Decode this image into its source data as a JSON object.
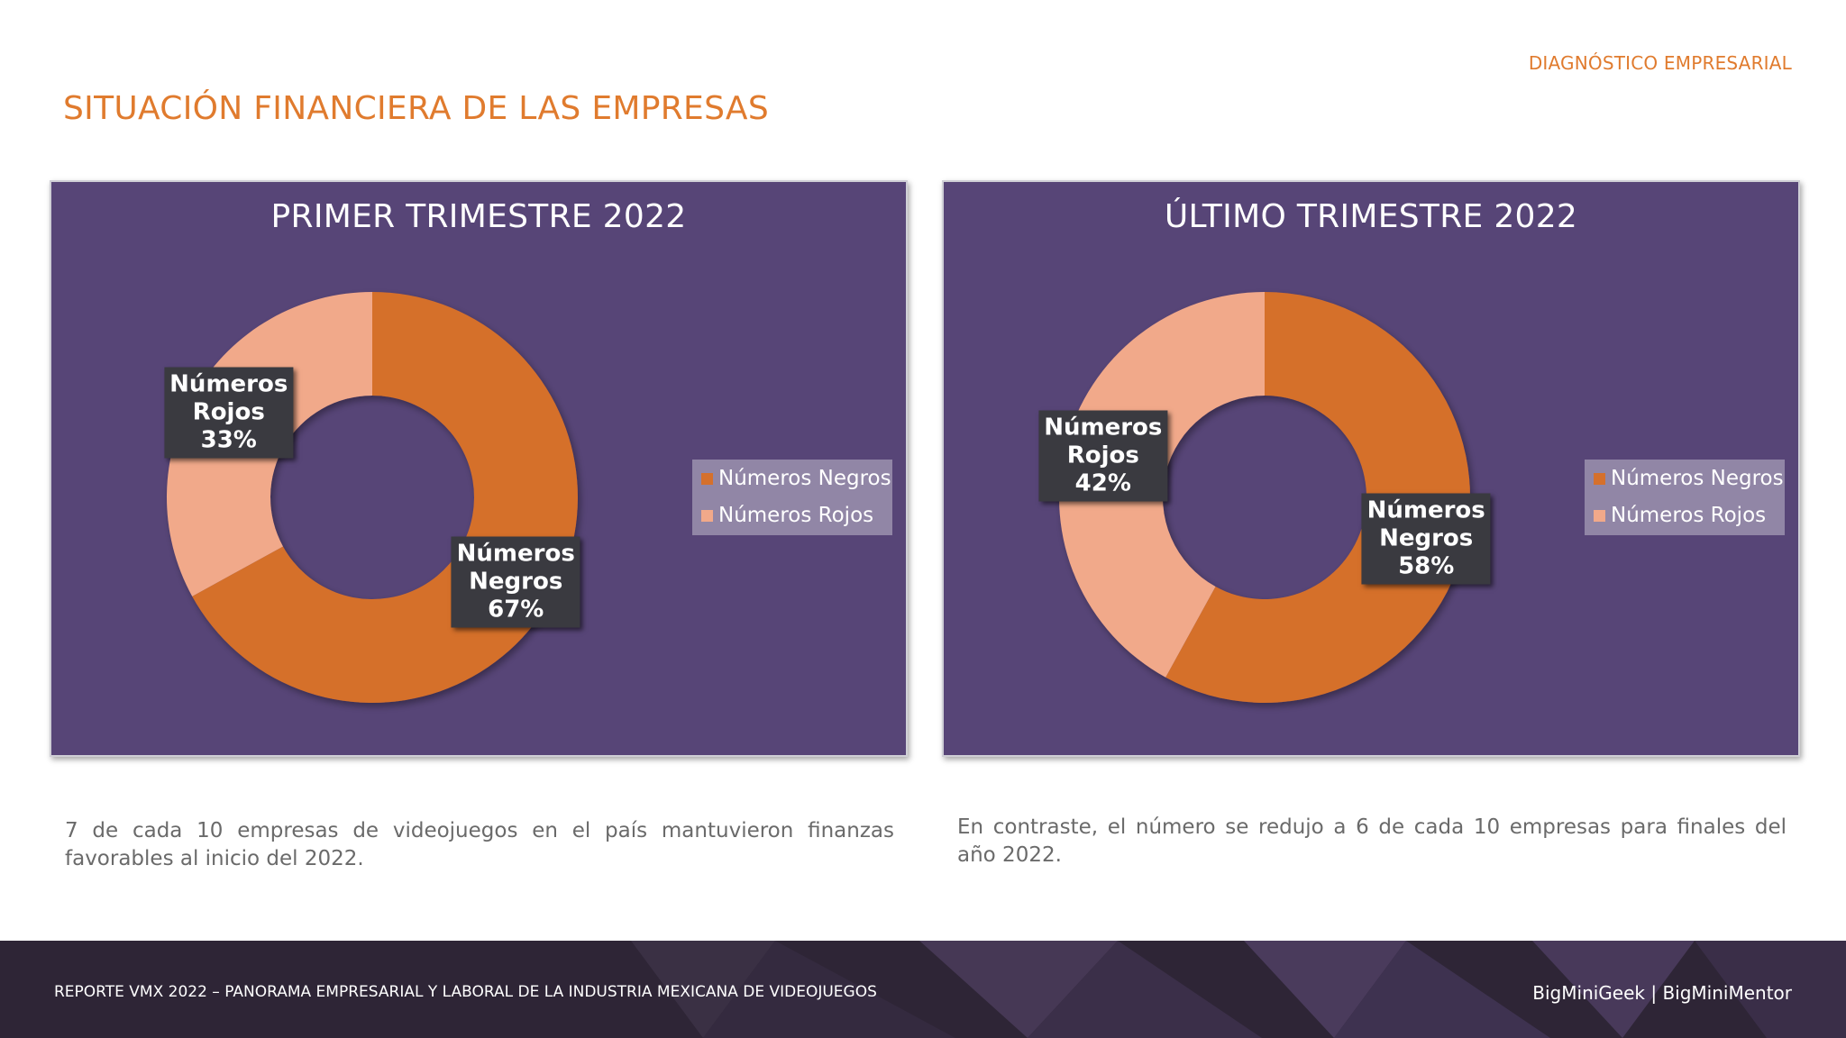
{
  "header": {
    "tag": "DIAGNÓSTICO EMPRESARIAL",
    "title": "SITUACIÓN FINANCIERA DE LAS EMPRESAS"
  },
  "colors": {
    "accent": "#e07b2e",
    "panel_bg": "#574577",
    "negros": "#d5702c",
    "rojos": "#f1a98a"
  },
  "chart_data": [
    {
      "type": "pie",
      "title": "PRIMER TRIMESTRE 2022",
      "categories": [
        "Números Negros",
        "Números Rojos"
      ],
      "values": [
        67,
        33
      ],
      "labels": [
        {
          "lines": [
            "Números",
            "Negros",
            "67%"
          ]
        },
        {
          "lines": [
            "Números",
            "Rojos",
            "33%"
          ]
        }
      ],
      "legend": [
        "Números Negros",
        "Números Rojos"
      ],
      "legend_position": "right",
      "donut": true
    },
    {
      "type": "pie",
      "title": "ÚLTIMO TRIMESTRE 2022",
      "categories": [
        "Números Negros",
        "Números Rojos"
      ],
      "values": [
        58,
        42
      ],
      "labels": [
        {
          "lines": [
            "Números",
            "Negros",
            "58%"
          ]
        },
        {
          "lines": [
            "Números",
            "Rojos",
            "42%"
          ]
        }
      ],
      "legend": [
        "Números Negros",
        "Números Rojos"
      ],
      "legend_position": "right",
      "donut": true
    }
  ],
  "captions": {
    "left": "7 de cada 10 empresas de videojuegos en el país mantuvieron finanzas favorables al inicio del 2022.",
    "right": "En contraste, el número se redujo a 6 de cada 10 empresas para finales del año 2022."
  },
  "footer": {
    "left": "REPORTE VMX 2022 – PANORAMA EMPRESARIAL Y LABORAL DE LA INDUSTRIA MEXICANA DE VIDEOJUEGOS",
    "right": "BigMiniGeek | BigMiniMentor"
  }
}
